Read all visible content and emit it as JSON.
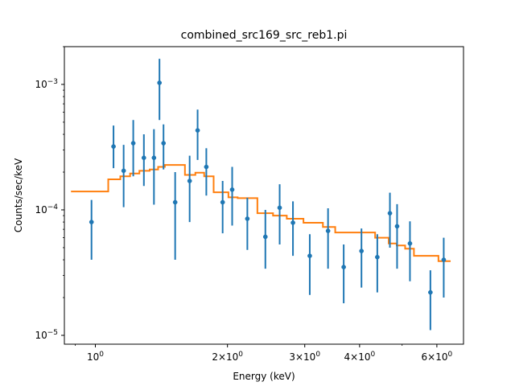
{
  "chart_data": {
    "type": "scatter",
    "title": "combined_src169_src_reb1.pi",
    "xlabel": "Energy (keV)",
    "ylabel": "Counts/sec/keV",
    "xscale": "log",
    "yscale": "log",
    "xlim": [
      0.85,
      6.9
    ],
    "ylim": [
      8.5e-06,
      0.002
    ],
    "grid": false,
    "x_ticks": [
      {
        "value": 1,
        "label": "10^0"
      },
      {
        "value": 2,
        "label": "2×10^0"
      },
      {
        "value": 3,
        "label": "3×10^0"
      },
      {
        "value": 4,
        "label": "4×10^0"
      },
      {
        "value": 6,
        "label": "6×10^0"
      }
    ],
    "y_ticks": [
      {
        "value": 1e-05,
        "label": "10^−5"
      },
      {
        "value": 0.0001,
        "label": "10^−4"
      },
      {
        "value": 0.001,
        "label": "10^−3"
      }
    ],
    "series": [
      {
        "kind": "errorbar",
        "color": "#1f77b4",
        "points": [
          {
            "x": 0.98,
            "y": 8e-05,
            "ylow": 4e-05,
            "yhigh": 0.00012
          },
          {
            "x": 1.1,
            "y": 0.00032,
            "ylow": 0.000215,
            "yhigh": 0.00047
          },
          {
            "x": 1.16,
            "y": 0.000205,
            "ylow": 0.000105,
            "yhigh": 0.00033
          },
          {
            "x": 1.22,
            "y": 0.00034,
            "ylow": 0.000185,
            "yhigh": 0.00052
          },
          {
            "x": 1.29,
            "y": 0.00026,
            "ylow": 0.000155,
            "yhigh": 0.0004
          },
          {
            "x": 1.36,
            "y": 0.00026,
            "ylow": 0.00011,
            "yhigh": 0.00044
          },
          {
            "x": 1.4,
            "y": 0.00103,
            "ylow": 0.00052,
            "yhigh": 0.0016
          },
          {
            "x": 1.43,
            "y": 0.00034,
            "ylow": 0.00021,
            "yhigh": 0.00048
          },
          {
            "x": 1.52,
            "y": 0.000115,
            "ylow": 4e-05,
            "yhigh": 0.0002
          },
          {
            "x": 1.64,
            "y": 0.00017,
            "ylow": 8e-05,
            "yhigh": 0.00027
          },
          {
            "x": 1.71,
            "y": 0.00043,
            "ylow": 0.00025,
            "yhigh": 0.00063
          },
          {
            "x": 1.79,
            "y": 0.00022,
            "ylow": 0.00013,
            "yhigh": 0.00031
          },
          {
            "x": 1.95,
            "y": 0.000115,
            "ylow": 6.5e-05,
            "yhigh": 0.00017
          },
          {
            "x": 2.05,
            "y": 0.000145,
            "ylow": 7.5e-05,
            "yhigh": 0.00022
          },
          {
            "x": 2.22,
            "y": 8.5e-05,
            "ylow": 4.8e-05,
            "yhigh": 0.000125
          },
          {
            "x": 2.44,
            "y": 6.1e-05,
            "ylow": 3.4e-05,
            "yhigh": 0.0001
          },
          {
            "x": 2.63,
            "y": 0.000104,
            "ylow": 5.3e-05,
            "yhigh": 0.00016
          },
          {
            "x": 2.82,
            "y": 7.9e-05,
            "ylow": 4.3e-05,
            "yhigh": 0.000117
          },
          {
            "x": 3.08,
            "y": 4.3e-05,
            "ylow": 2.1e-05,
            "yhigh": 6.4e-05
          },
          {
            "x": 3.39,
            "y": 6.8e-05,
            "ylow": 3.4e-05,
            "yhigh": 0.000103
          },
          {
            "x": 3.68,
            "y": 3.5e-05,
            "ylow": 1.8e-05,
            "yhigh": 5.3e-05
          },
          {
            "x": 4.04,
            "y": 4.7e-05,
            "ylow": 2.4e-05,
            "yhigh": 7.1e-05
          },
          {
            "x": 4.39,
            "y": 4.2e-05,
            "ylow": 2.2e-05,
            "yhigh": 6.4e-05
          },
          {
            "x": 4.69,
            "y": 9.4e-05,
            "ylow": 5e-05,
            "yhigh": 0.000137
          },
          {
            "x": 4.87,
            "y": 7.4e-05,
            "ylow": 3.4e-05,
            "yhigh": 0.000111
          },
          {
            "x": 5.21,
            "y": 5.4e-05,
            "ylow": 2.7e-05,
            "yhigh": 8.1e-05
          },
          {
            "x": 5.8,
            "y": 2.2e-05,
            "ylow": 1.1e-05,
            "yhigh": 3.3e-05
          },
          {
            "x": 6.22,
            "y": 4e-05,
            "ylow": 2e-05,
            "yhigh": 6e-05
          }
        ]
      },
      {
        "kind": "step",
        "color": "#ff7f0e",
        "points": [
          {
            "x": 0.88,
            "y": 0.00014
          },
          {
            "x": 1.07,
            "y": 0.000175
          },
          {
            "x": 1.14,
            "y": 0.000185
          },
          {
            "x": 1.2,
            "y": 0.000195
          },
          {
            "x": 1.26,
            "y": 0.000205
          },
          {
            "x": 1.33,
            "y": 0.00021
          },
          {
            "x": 1.39,
            "y": 0.00022
          },
          {
            "x": 1.44,
            "y": 0.000228
          },
          {
            "x": 1.6,
            "y": 0.00019
          },
          {
            "x": 1.69,
            "y": 0.000198
          },
          {
            "x": 1.77,
            "y": 0.000185
          },
          {
            "x": 1.86,
            "y": 0.000138
          },
          {
            "x": 2.01,
            "y": 0.000126
          },
          {
            "x": 2.11,
            "y": 0.000124
          },
          {
            "x": 2.34,
            "y": 9.4e-05
          },
          {
            "x": 2.54,
            "y": 9e-05
          },
          {
            "x": 2.73,
            "y": 8.5e-05
          },
          {
            "x": 2.98,
            "y": 7.9e-05
          },
          {
            "x": 3.3,
            "y": 7.3e-05
          },
          {
            "x": 3.52,
            "y": 6.6e-05
          },
          {
            "x": 4.34,
            "y": 6e-05
          },
          {
            "x": 4.66,
            "y": 5.4e-05
          },
          {
            "x": 4.86,
            "y": 5.2e-05
          },
          {
            "x": 5.08,
            "y": 4.9e-05
          },
          {
            "x": 5.32,
            "y": 4.3e-05
          },
          {
            "x": 6.05,
            "y": 3.9e-05
          },
          {
            "x": 6.45,
            "y": 3.9e-05
          }
        ]
      }
    ]
  }
}
